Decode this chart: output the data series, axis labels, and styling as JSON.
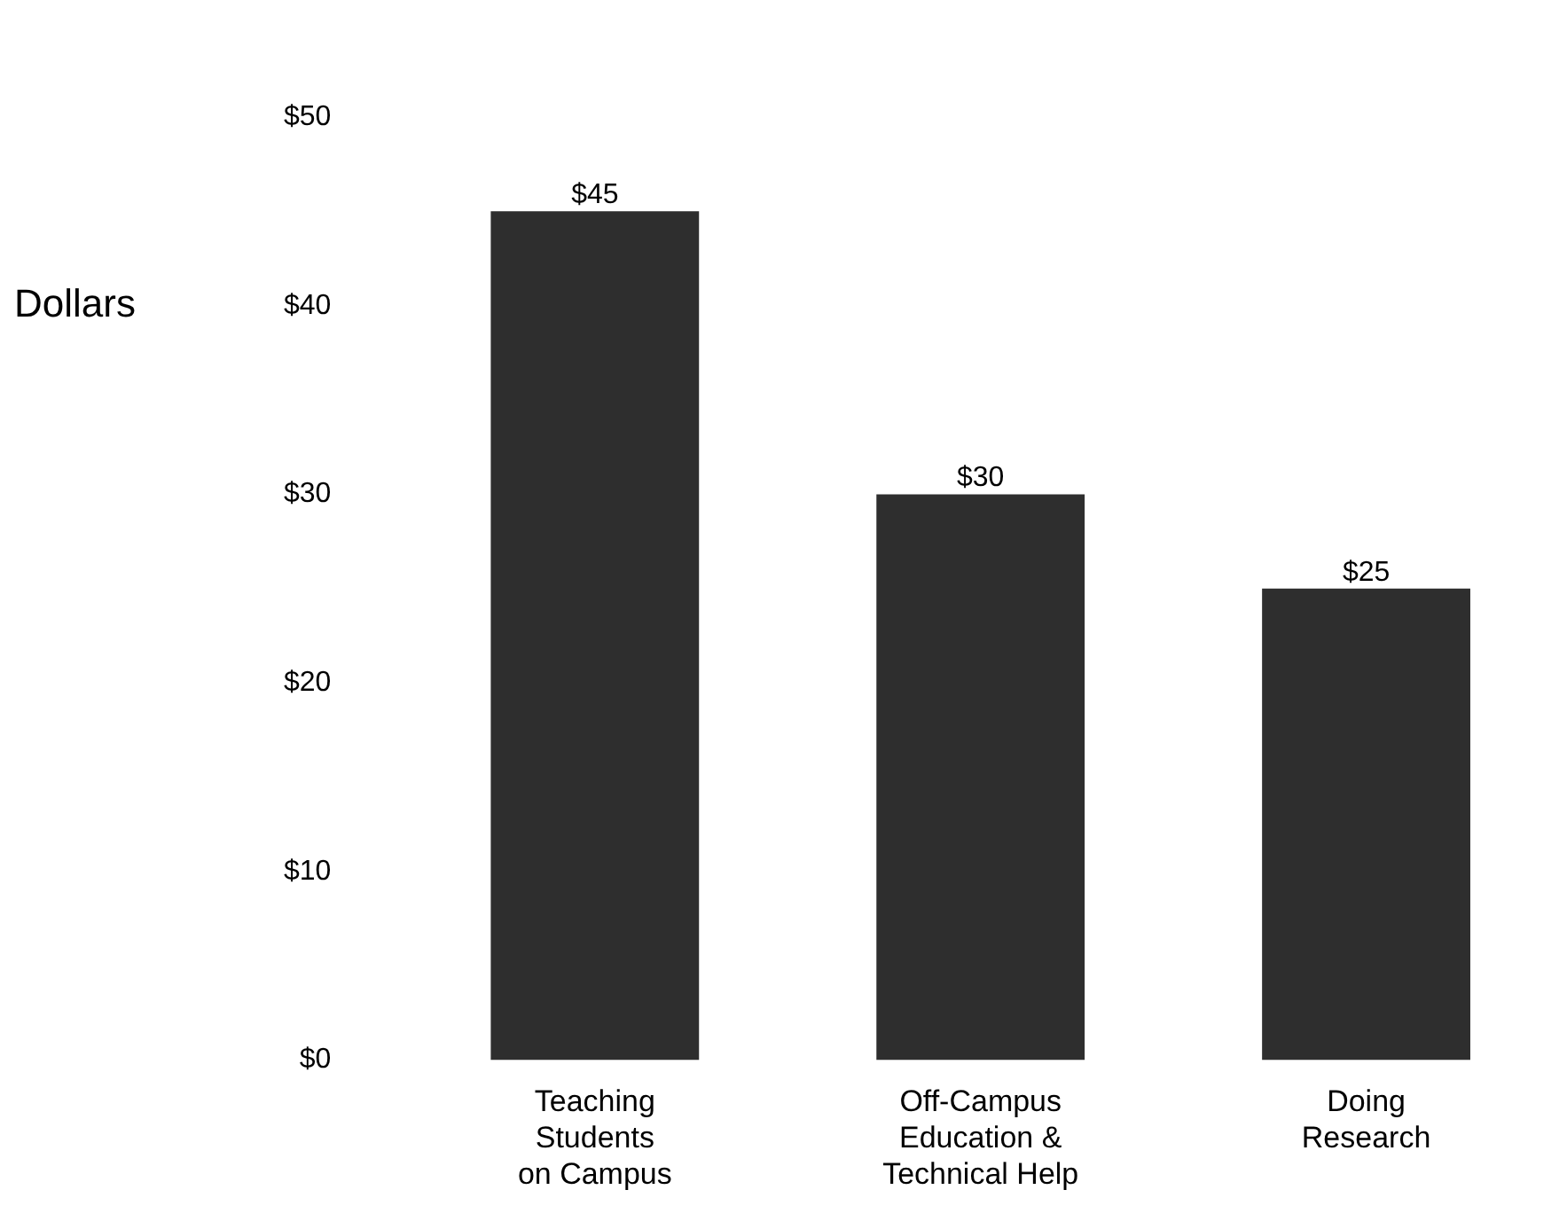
{
  "chart_data": {
    "type": "bar",
    "ylabel": "Dollars",
    "categories": [
      "Teaching\nStudents\non Campus",
      "Off-Campus\nEducation &\nTechnical Help",
      "Doing\nResearch"
    ],
    "values": [
      45,
      30,
      25
    ],
    "color": "#2e2e2e",
    "value_labels": [
      "$45",
      "$30",
      "$25"
    ],
    "ylim": [
      0,
      50
    ],
    "yticks": [
      {
        "value": 0,
        "label": "$0"
      },
      {
        "value": 10,
        "label": "$10"
      },
      {
        "value": 20,
        "label": "$20"
      },
      {
        "value": 30,
        "label": "$30"
      },
      {
        "value": 40,
        "label": "$40"
      },
      {
        "value": 50,
        "label": "$50"
      }
    ],
    "grid": false,
    "legend": false
  }
}
